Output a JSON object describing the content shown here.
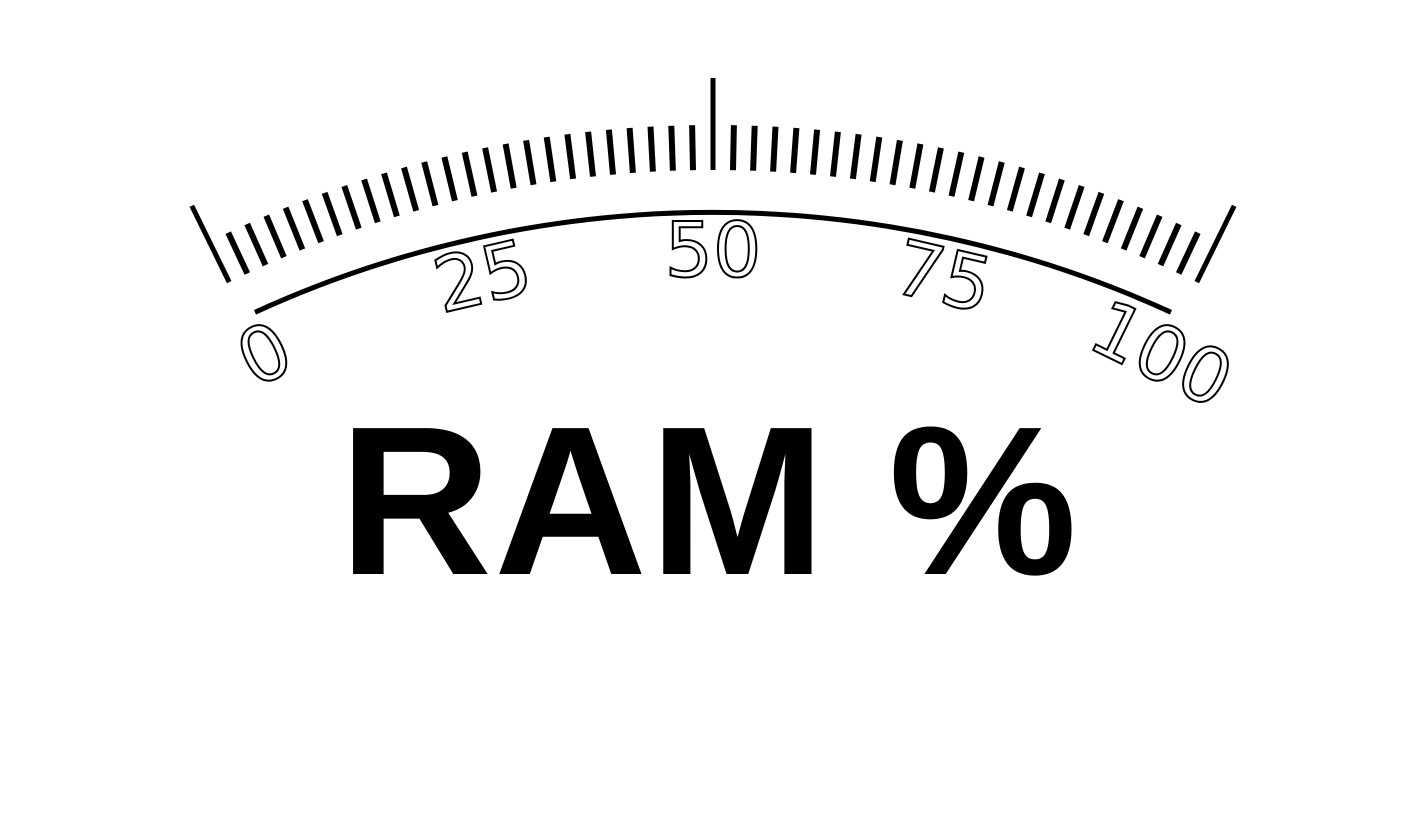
{
  "gauge": {
    "title": "RAM %",
    "min": 0,
    "max": 100,
    "scale_labels": [
      "0",
      "25",
      "50",
      "75",
      "100"
    ],
    "ink_color": "#000000",
    "background_color": "#ffffff"
  }
}
